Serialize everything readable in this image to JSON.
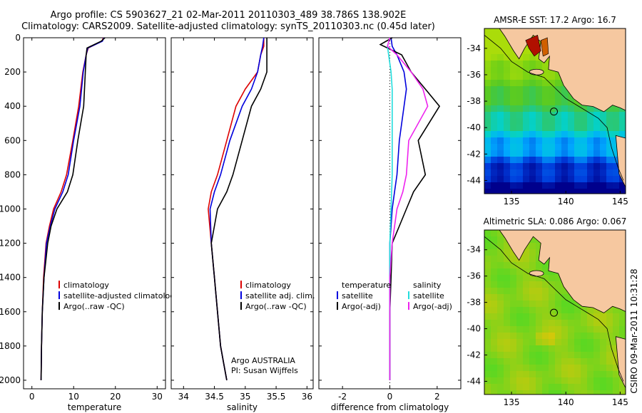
{
  "title_lines": [
    "Argo profile: CS 5903627_21 02-Mar-2011 20110303_489 38.786S 138.902E",
    "Climatology: CARS2009. Satellite-adjusted climatology: synTS_20110303.nc (0.45d later)"
  ],
  "colors": {
    "climatology": "#dd0000",
    "satellite": "#0000dd",
    "argo": "#000000",
    "argo_salinity": "#ee22ee",
    "satellite_salinity": "#22dddd",
    "land": "#f6c8a0"
  },
  "chart_data": [
    {
      "type": "line",
      "xlabel": "temperature",
      "ylabel": "",
      "xlim": [
        -2,
        32
      ],
      "ylim": [
        2050,
        0
      ],
      "xticks": [
        0,
        10,
        20,
        30
      ],
      "yticks": [
        0,
        200,
        400,
        600,
        800,
        1000,
        1200,
        1400,
        1600,
        1800,
        2000
      ],
      "legend": {
        "placement": "bottom-center",
        "entries": [
          "climatology",
          "satellite-adjusted climatology",
          "Argo(..raw -QC)"
        ]
      },
      "series": [
        {
          "name": "climatology",
          "color": "#dd0000",
          "x": [
            17.1,
            16.8,
            13.5,
            13.0,
            12.2,
            11.2,
            9.8,
            8.3,
            7.0,
            5.2,
            4.2,
            3.4,
            2.8,
            2.5,
            2.3,
            2.2
          ],
          "y": [
            0,
            20,
            60,
            100,
            200,
            400,
            600,
            800,
            900,
            1000,
            1100,
            1200,
            1400,
            1600,
            1800,
            2000
          ]
        },
        {
          "name": "satellite-adjusted climatology",
          "color": "#0000dd",
          "x": [
            17.2,
            16.9,
            13.4,
            13.0,
            12.3,
            11.5,
            10.0,
            8.7,
            7.4,
            5.5,
            4.4,
            3.5,
            2.9,
            2.5,
            2.3,
            2.2
          ],
          "y": [
            0,
            20,
            60,
            100,
            200,
            400,
            600,
            800,
            900,
            1000,
            1100,
            1200,
            1400,
            1600,
            1800,
            2000
          ]
        },
        {
          "name": "Argo(..raw -QC)",
          "color": "#000000",
          "x": [
            17.5,
            16.6,
            13.2,
            13.0,
            12.8,
            12.4,
            11.0,
            9.8,
            8.5,
            6.0,
            4.6,
            3.8,
            2.9,
            2.5,
            2.3,
            2.2
          ],
          "y": [
            0,
            20,
            60,
            100,
            200,
            400,
            600,
            800,
            900,
            1000,
            1100,
            1200,
            1400,
            1600,
            1800,
            2000
          ]
        }
      ]
    },
    {
      "type": "line",
      "xlabel": "salinity",
      "xlim": [
        33.8,
        36.1
      ],
      "ylim": [
        2050,
        0
      ],
      "xticks": [
        34,
        34.5,
        35,
        35.5,
        36
      ],
      "legend": {
        "placement": "bottom-right",
        "entries": [
          "climatology",
          "satellite adj. clim.",
          "Argo(..raw -QC)"
        ]
      },
      "annotation_lines": [
        "Argo AUSTRALIA",
        "PI: Susan Wijffels"
      ],
      "series": [
        {
          "name": "climatology",
          "color": "#dd0000",
          "x": [
            35.3,
            35.3,
            35.25,
            35.2,
            35.0,
            34.85,
            34.7,
            34.55,
            34.45,
            34.4,
            34.45,
            34.5,
            34.55,
            34.6,
            34.65,
            34.7
          ],
          "y": [
            0,
            50,
            100,
            200,
            300,
            400,
            600,
            800,
            900,
            1000,
            1200,
            1400,
            1600,
            1800,
            1900,
            2000
          ]
        },
        {
          "name": "satellite adj. clim.",
          "color": "#0000dd",
          "x": [
            35.3,
            35.28,
            35.25,
            35.2,
            35.1,
            34.95,
            34.75,
            34.6,
            34.5,
            34.43,
            34.45,
            34.5,
            34.55,
            34.6,
            34.65,
            34.7
          ],
          "y": [
            0,
            50,
            100,
            200,
            300,
            400,
            600,
            800,
            900,
            1000,
            1200,
            1400,
            1600,
            1800,
            1900,
            2000
          ]
        },
        {
          "name": "Argo(..raw -QC)",
          "color": "#000000",
          "x": [
            35.35,
            35.35,
            35.35,
            35.35,
            35.25,
            35.1,
            34.95,
            34.8,
            34.7,
            34.55,
            34.45,
            34.5,
            34.55,
            34.6,
            34.65,
            34.7
          ],
          "y": [
            0,
            50,
            100,
            200,
            300,
            400,
            600,
            800,
            900,
            1000,
            1200,
            1400,
            1600,
            1800,
            1900,
            2000
          ]
        }
      ]
    },
    {
      "type": "line",
      "xlabel": "difference from climatology",
      "xlim": [
        -3,
        3
      ],
      "ylim": [
        2050,
        0
      ],
      "xticks": [
        -2,
        0,
        2
      ],
      "legend": {
        "placement": "bottom-center",
        "column_titles": [
          "temperature",
          "salinity"
        ],
        "entries": [
          "satellite",
          "Argo(-adj)",
          "satellite",
          "Argo(-adj)"
        ]
      },
      "series": [
        {
          "name": "satellite (temperature)",
          "color": "#0000dd",
          "x": [
            0.05,
            0.1,
            0.3,
            0.6,
            0.7,
            0.6,
            0.4,
            0.3,
            0.2,
            0.1,
            0.05,
            0.0,
            0.0,
            0.0,
            0.0
          ],
          "y": [
            0,
            50,
            100,
            200,
            300,
            400,
            600,
            800,
            900,
            1000,
            1100,
            1200,
            1400,
            1600,
            2000
          ]
        },
        {
          "name": "Argo(-adj) (temperature)",
          "color": "#000000",
          "x": [
            0.1,
            -0.4,
            0.5,
            0.9,
            1.5,
            2.1,
            1.2,
            1.5,
            1.0,
            0.7,
            0.4,
            0.1,
            0.05,
            0.0,
            0.0
          ],
          "y": [
            0,
            40,
            100,
            200,
            300,
            400,
            600,
            800,
            900,
            1000,
            1100,
            1200,
            1400,
            1600,
            2000
          ]
        },
        {
          "name": "satellite (salinity)",
          "color": "#22dddd",
          "x": [
            0.0,
            -0.1,
            -0.05,
            0.05,
            0.1,
            0.1,
            0.1,
            0.1,
            0.05,
            0.0,
            0.0,
            0.0,
            0.0,
            0.0
          ],
          "y": [
            0,
            50,
            100,
            200,
            300,
            400,
            600,
            800,
            1000,
            1200,
            1400,
            1600,
            1800,
            2000
          ]
        },
        {
          "name": "Argo(-adj) (salinity)",
          "color": "#ee22ee",
          "x": [
            0.0,
            -0.1,
            0.3,
            0.9,
            1.4,
            1.6,
            0.8,
            0.7,
            0.55,
            0.3,
            0.1,
            0.0,
            0.0,
            0.0
          ],
          "y": [
            0,
            50,
            100,
            200,
            300,
            400,
            600,
            800,
            900,
            1000,
            1200,
            1400,
            1800,
            2000
          ]
        }
      ]
    },
    {
      "type": "heatmap",
      "title": "AMSR-E SST: 17.2 Argo: 16.7",
      "xlim": [
        132.5,
        145.5
      ],
      "ylim": [
        -45,
        -32.5
      ],
      "xticks": [
        135,
        140,
        145
      ],
      "yticks": [
        -34,
        -36,
        -38,
        -40,
        -42,
        -44
      ],
      "marker": {
        "lon": 138.902,
        "lat": -38.786
      }
    },
    {
      "type": "heatmap",
      "title": "Altimetric SLA: 0.086 Argo: 0.067",
      "xlim": [
        132.5,
        145.5
      ],
      "ylim": [
        -45,
        -32.5
      ],
      "xticks": [
        135,
        140,
        145
      ],
      "yticks": [
        -34,
        -36,
        -38,
        -40,
        -42,
        -44
      ],
      "marker": {
        "lon": 138.902,
        "lat": -38.786
      }
    }
  ],
  "side_stamp": "CSIRO 09-Mar-2011 10:31:28"
}
